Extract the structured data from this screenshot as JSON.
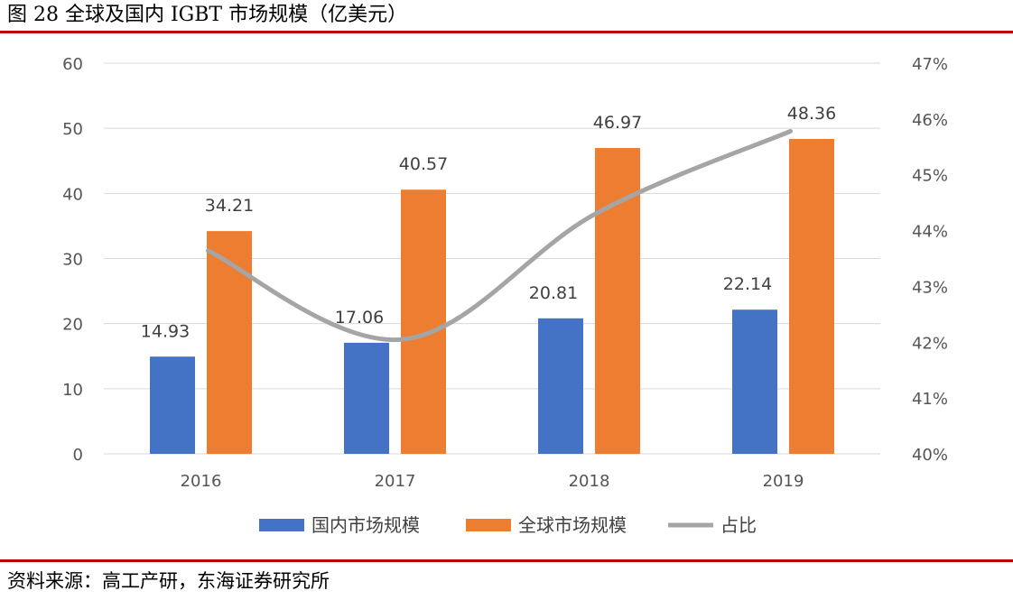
{
  "figure": {
    "title": "图 28 全球及国内 IGBT 市场规模（亿美元）",
    "source": "资料来源：高工产研，东海证券研究所"
  },
  "colors": {
    "domestic": "#4472c4",
    "global": "#ed7d31",
    "ratio": "#a5a5a5",
    "rule": "#c00000",
    "grid": "#d9d9d9"
  },
  "chart_data": {
    "type": "bar",
    "categories": [
      "2016",
      "2017",
      "2018",
      "2019"
    ],
    "series": [
      {
        "name": "国内市场规模",
        "type": "bar",
        "axis": "left",
        "values": [
          14.93,
          17.06,
          20.81,
          22.14
        ]
      },
      {
        "name": "全球市场规模",
        "type": "bar",
        "axis": "left",
        "values": [
          34.21,
          40.57,
          46.97,
          48.36
        ]
      },
      {
        "name": "占比",
        "type": "line",
        "axis": "right",
        "values": [
          43.64,
          42.05,
          44.31,
          45.78
        ]
      }
    ],
    "ylim": [
      0,
      60
    ],
    "yticks": [
      "0",
      "10",
      "20",
      "30",
      "40",
      "50",
      "60"
    ],
    "y2lim": [
      40,
      47
    ],
    "y2ticks": [
      "40%",
      "41%",
      "42%",
      "43%",
      "44%",
      "45%",
      "46%",
      "47%"
    ],
    "data_labels": {
      "domestic": [
        "14.93",
        "17.06",
        "20.81",
        "22.14"
      ],
      "global": [
        "34.21",
        "40.57",
        "46.97",
        "48.36"
      ]
    },
    "grid": true,
    "legend_position": "bottom"
  }
}
